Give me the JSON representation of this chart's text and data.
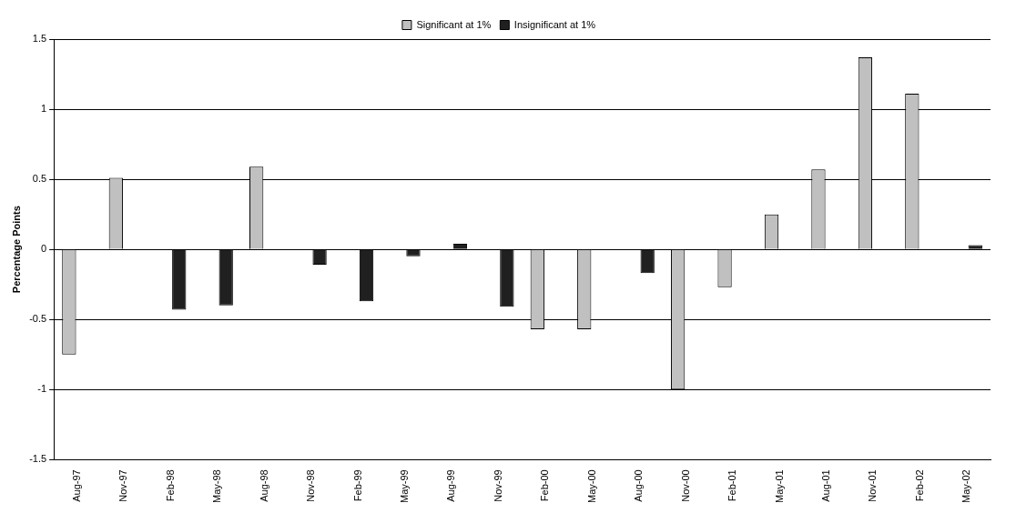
{
  "chart_data": {
    "type": "bar",
    "ylabel": "Percentage Points",
    "categories": [
      "Aug-97",
      "Nov-97",
      "Feb-98",
      "May-98",
      "Aug-98",
      "Nov-98",
      "Feb-99",
      "May-99",
      "Aug-99",
      "Nov-99",
      "Feb-00",
      "May-00",
      "Aug-00",
      "Nov-00",
      "Feb-01",
      "May-01",
      "Aug-01",
      "Nov-01",
      "Feb-02",
      "May-02"
    ],
    "series": [
      {
        "name": "Significant at 1%",
        "color": "#c0c0c0",
        "values": [
          -0.75,
          0.51,
          null,
          null,
          0.59,
          null,
          null,
          null,
          null,
          null,
          -0.57,
          -0.57,
          null,
          -1.0,
          -0.27,
          0.25,
          0.57,
          1.37,
          1.11,
          null
        ]
      },
      {
        "name": "Insignificant at 1%",
        "color": "#202020",
        "values": [
          null,
          null,
          -0.43,
          -0.4,
          null,
          -0.11,
          -0.37,
          -0.05,
          0.04,
          -0.41,
          null,
          null,
          -0.17,
          null,
          null,
          null,
          null,
          null,
          null,
          0.03
        ]
      }
    ],
    "ylim": [
      -1.5,
      1.5
    ],
    "yticks": [
      -1.5,
      -1,
      -0.5,
      0,
      0.5,
      1,
      1.5
    ],
    "grid": "y",
    "legend": "top"
  }
}
